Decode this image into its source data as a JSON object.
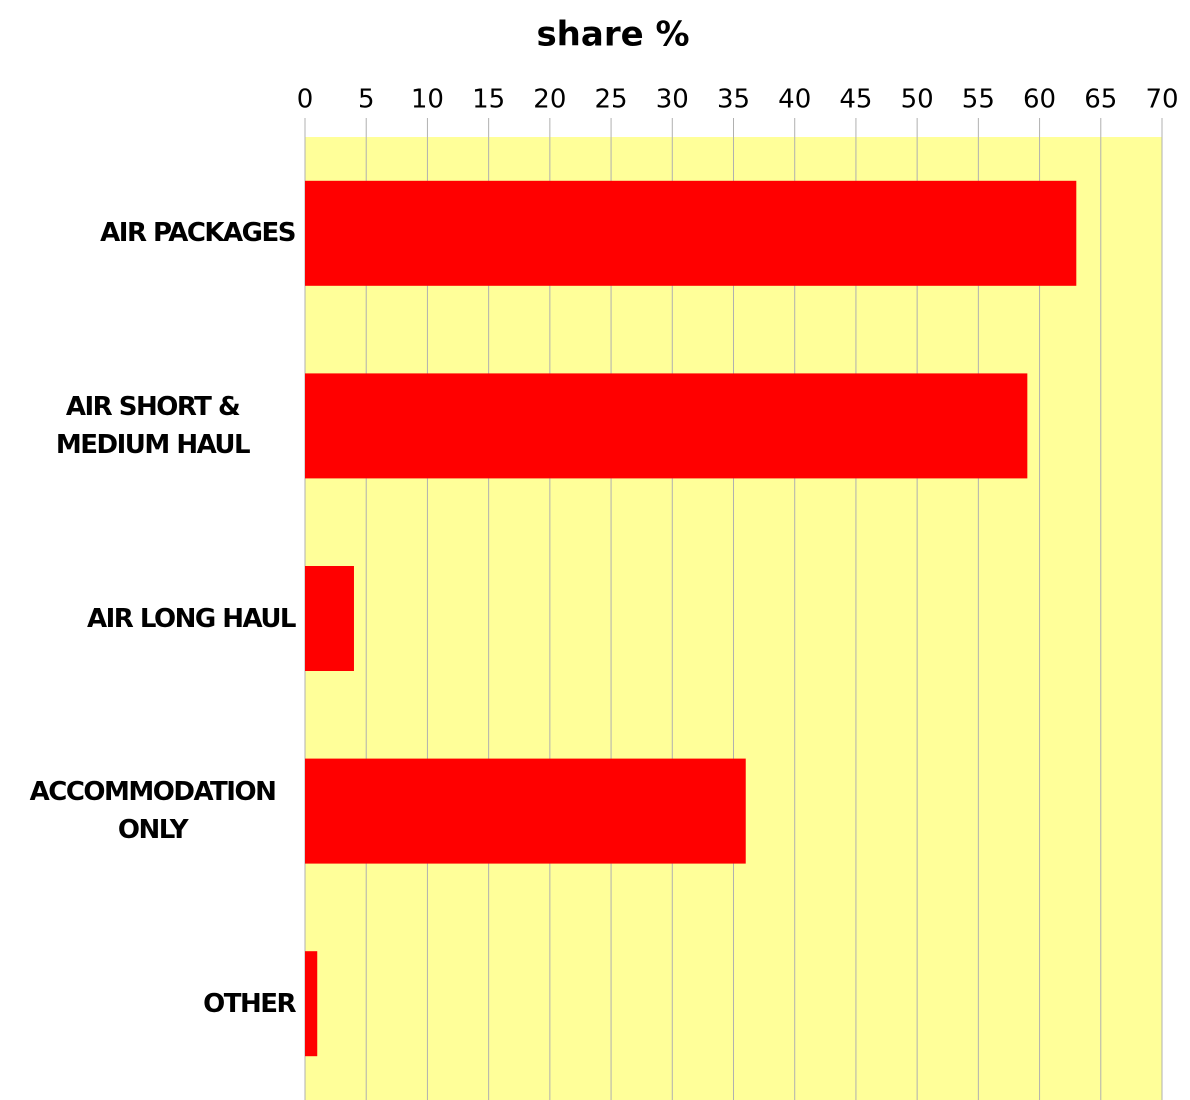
{
  "chart_data": {
    "type": "hbar",
    "title": "share %",
    "categories": [
      "AIR PACKAGES",
      "AIR SHORT & MEDIUM HAUL",
      "AIR LONG HAUL",
      "ACCOMMODATION ONLY",
      "OTHER"
    ],
    "values": [
      63,
      59,
      4,
      36,
      1
    ],
    "color": "#ff0000",
    "background": "#ffff99",
    "xlim": [
      0,
      70
    ],
    "xticks": [
      0,
      5,
      10,
      15,
      20,
      25,
      30,
      35,
      40,
      45,
      50,
      55,
      60,
      65,
      70
    ],
    "grid": true
  }
}
